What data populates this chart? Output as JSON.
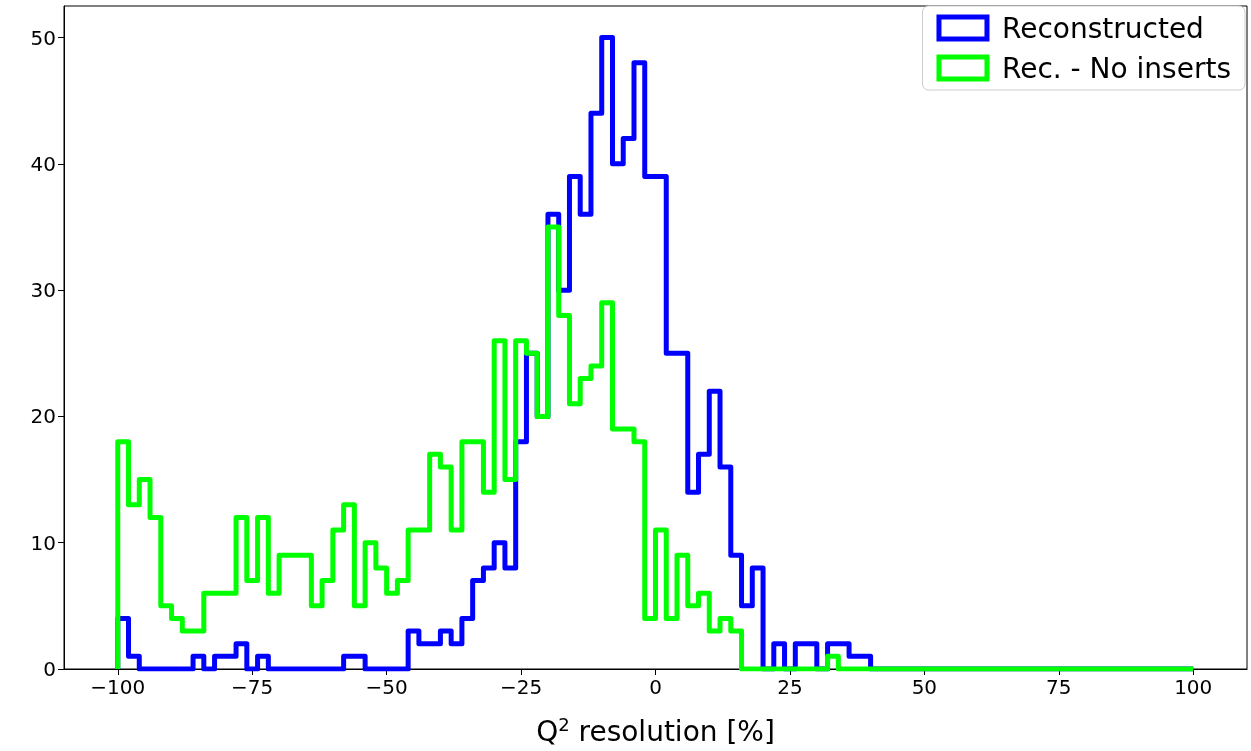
{
  "chart_data": {
    "type": "histogram",
    "xlabel": "Q$^{2}$ resolution [%]",
    "bins": [
      -100,
      -98,
      -96,
      -94,
      -92,
      -90,
      -88,
      -86,
      -84,
      -82,
      -80,
      -78,
      -76,
      -74,
      -72,
      -70,
      -68,
      -66,
      -64,
      -62,
      -60,
      -58,
      -56,
      -54,
      -52,
      -50,
      -48,
      -46,
      -44,
      -42,
      -40,
      -38,
      -36,
      -34,
      -32,
      -30,
      -28,
      -26,
      -24,
      -22,
      -20,
      -18,
      -16,
      -14,
      -12,
      -10,
      -8,
      -6,
      -4,
      -2,
      0,
      2,
      4,
      6,
      8,
      10,
      12,
      14,
      16,
      18,
      20,
      22,
      24,
      26,
      28,
      30,
      32,
      34,
      36,
      38,
      40,
      42,
      44,
      46,
      48,
      50,
      52,
      54,
      56,
      58,
      60,
      62,
      64,
      66,
      68,
      70,
      72,
      74,
      76,
      78,
      80,
      82,
      84,
      86,
      88,
      90,
      92,
      94,
      96,
      98,
      100
    ],
    "series": [
      {
        "name": "Reconstructed",
        "color": "#0000ff",
        "values": [
          4,
          1,
          0,
          0,
          0,
          0,
          0,
          1,
          0,
          1,
          1,
          2,
          0,
          1,
          0,
          0,
          0,
          0,
          0,
          0,
          0,
          1,
          1,
          0,
          0,
          0,
          0,
          3,
          2,
          2,
          3,
          2,
          4,
          7,
          8,
          10,
          8,
          18,
          25,
          20,
          36,
          30,
          39,
          36,
          44,
          50,
          40,
          42,
          48,
          39,
          39,
          25,
          25,
          14,
          17,
          22,
          16,
          9,
          5,
          8,
          0,
          2,
          0,
          2,
          2,
          0,
          2,
          2,
          1,
          1,
          0,
          0,
          0,
          0,
          0,
          0,
          0,
          0,
          0,
          0,
          0,
          0,
          0,
          0,
          0,
          0,
          0,
          0,
          0,
          0,
          0,
          0,
          0,
          0,
          0,
          0,
          0,
          0,
          0,
          0
        ]
      },
      {
        "name": "Rec. - No inserts",
        "color": "#00ff00",
        "values": [
          18,
          13,
          15,
          12,
          5,
          4,
          3,
          3,
          6,
          6,
          6,
          12,
          7,
          12,
          6,
          9,
          9,
          9,
          5,
          7,
          11,
          13,
          5,
          10,
          8,
          6,
          7,
          11,
          11,
          17,
          16,
          11,
          18,
          18,
          14,
          26,
          15,
          26,
          25,
          20,
          35,
          28,
          21,
          23,
          24,
          29,
          19,
          19,
          18,
          4,
          11,
          4,
          9,
          5,
          6,
          3,
          4,
          3,
          0,
          0,
          0,
          0,
          0,
          0,
          0,
          0,
          1,
          0,
          0,
          0,
          0,
          0,
          0,
          0,
          0,
          0,
          0,
          0,
          0,
          0,
          0,
          0,
          0,
          0,
          0,
          0,
          0,
          0,
          0,
          0,
          0,
          0,
          0,
          0,
          0,
          0,
          0,
          0,
          0,
          0
        ]
      }
    ],
    "xlim": [
      -110,
      110
    ],
    "xticks": [
      {
        "value": -100,
        "label": "−100"
      },
      {
        "value": -75,
        "label": "−75"
      },
      {
        "value": -50,
        "label": "−50"
      },
      {
        "value": -25,
        "label": "−25"
      },
      0,
      25,
      50,
      75,
      100
    ],
    "ylim": [
      0,
      52.5
    ],
    "yticks": [
      0,
      10,
      20,
      30,
      40,
      50
    ],
    "grid": false,
    "legend": "top right"
  }
}
